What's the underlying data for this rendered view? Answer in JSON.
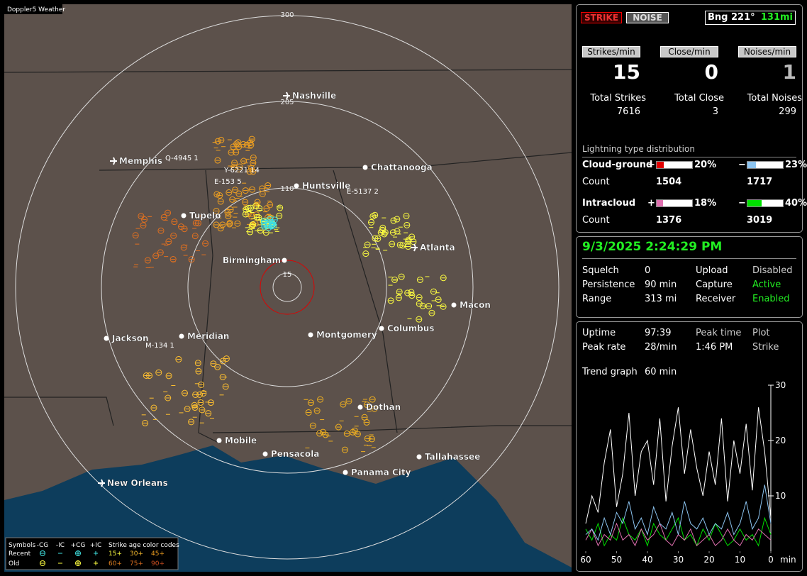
{
  "map": {
    "title": "Doppler5 Weather",
    "ring_labels": [
      "300",
      "205",
      "110",
      "15"
    ],
    "cities": [
      "Nashville",
      "Memphis",
      "Chattanooga",
      "Huntsville",
      "Tupelo",
      "Atlanta",
      "Birmingham",
      "Macon",
      "Jackson",
      "Meridian",
      "Montgomery",
      "Columbus",
      "Dothan",
      "Mobile",
      "Pensacola",
      "Tallahassee",
      "Panama City",
      "New Orleans"
    ],
    "strike_tags": [
      "Q-4945 1",
      "Y-6221 14",
      "E-153 5",
      "E-5137 2",
      "M-134 1"
    ]
  },
  "legend": {
    "symbols": "Symbols",
    "columns": [
      "-CG",
      "-IC",
      "+CG",
      "+IC"
    ],
    "age_title": "Strike age color codes",
    "recent": "Recent",
    "old": "Old",
    "recent_ages": [
      "15+",
      "30+",
      "45+"
    ],
    "old_ages": [
      "60+",
      "75+",
      "90+"
    ]
  },
  "header": {
    "strike": "STRIKE",
    "noise": "NOISE",
    "bearing": "Bng 221°",
    "distance": "131mi"
  },
  "counters": [
    {
      "button": "Strikes/min",
      "value": "15",
      "total_label": "Total Strikes",
      "total": "7616"
    },
    {
      "button": "Close/min",
      "value": "0",
      "total_label": "Total Close",
      "total": "3"
    },
    {
      "button": "Noises/min",
      "value": "1",
      "total_label": "Total Noises",
      "total": "299"
    }
  ],
  "distribution": {
    "title": "Lightning type distribution",
    "count_label": "Count",
    "rows": [
      {
        "name": "Cloud-ground",
        "pos": {
          "sign": "+",
          "value": 20,
          "value_label": "20%",
          "color": "#e00000",
          "count": "1504"
        },
        "neg": {
          "sign": "−",
          "value": 23,
          "value_label": "23%",
          "color": "#8cc4f0",
          "count": "1717"
        }
      },
      {
        "name": "Intracloud",
        "pos": {
          "sign": "+",
          "value": 18,
          "value_label": "18%",
          "color": "#e070b0",
          "count": "1376"
        },
        "neg": {
          "sign": "−",
          "value": 40,
          "value_label": "40%",
          "color": "#00e000",
          "count": "3019"
        }
      }
    ]
  },
  "status": {
    "datetime": "9/3/2025 2:24:29 PM",
    "items": [
      [
        "Squelch",
        "0",
        "Upload",
        "Disabled"
      ],
      [
        "Persistence",
        "90 min",
        "Capture",
        "Active"
      ],
      [
        "Range",
        "313 mi",
        "Receiver",
        "Enabled"
      ]
    ]
  },
  "stats": {
    "items": [
      [
        "Uptime",
        "97:39",
        "Peak time",
        "Plot"
      ],
      [
        "Peak rate",
        "28/min",
        "1:46 PM",
        "Strike"
      ]
    ],
    "trend_label": "Trend graph",
    "trend_value": "60 min"
  },
  "trend_chart": {
    "type": "line",
    "x_unit": "min",
    "x": [
      60,
      58,
      56,
      54,
      52,
      50,
      48,
      46,
      44,
      42,
      40,
      38,
      36,
      34,
      32,
      30,
      28,
      26,
      24,
      22,
      20,
      18,
      16,
      14,
      12,
      10,
      8,
      6,
      4,
      2,
      0
    ],
    "xlim": [
      60,
      0
    ],
    "xticks": [
      60,
      50,
      40,
      30,
      20,
      10,
      0
    ],
    "ylim": [
      0,
      30
    ],
    "yticks": [
      10,
      20,
      30
    ],
    "series": [
      {
        "color": "#ffffff",
        "values": [
          5,
          10,
          7,
          16,
          22,
          8,
          14,
          25,
          10,
          18,
          20,
          12,
          24,
          9,
          19,
          26,
          14,
          22,
          15,
          10,
          18,
          12,
          24,
          9,
          20,
          14,
          23,
          11,
          26,
          18,
          6
        ]
      },
      {
        "color": "#8cc4f0",
        "values": [
          3,
          4,
          2,
          6,
          3,
          7,
          5,
          9,
          4,
          6,
          3,
          8,
          5,
          4,
          7,
          3,
          9,
          5,
          4,
          6,
          3,
          5,
          4,
          7,
          3,
          5,
          9,
          4,
          6,
          12,
          5
        ]
      },
      {
        "color": "#e070b0",
        "values": [
          2,
          4,
          1,
          3,
          2,
          5,
          2,
          3,
          1,
          4,
          2,
          3,
          5,
          2,
          1,
          3,
          2,
          4,
          1,
          2,
          3,
          1,
          2,
          4,
          2,
          1,
          3,
          2,
          4,
          3,
          2
        ]
      },
      {
        "color": "#00e000",
        "values": [
          4,
          2,
          5,
          1,
          3,
          2,
          6,
          3,
          2,
          4,
          1,
          5,
          3,
          2,
          4,
          6,
          2,
          3,
          1,
          4,
          2,
          5,
          3,
          1,
          2,
          4,
          2,
          3,
          1,
          6,
          3
        ]
      }
    ]
  }
}
